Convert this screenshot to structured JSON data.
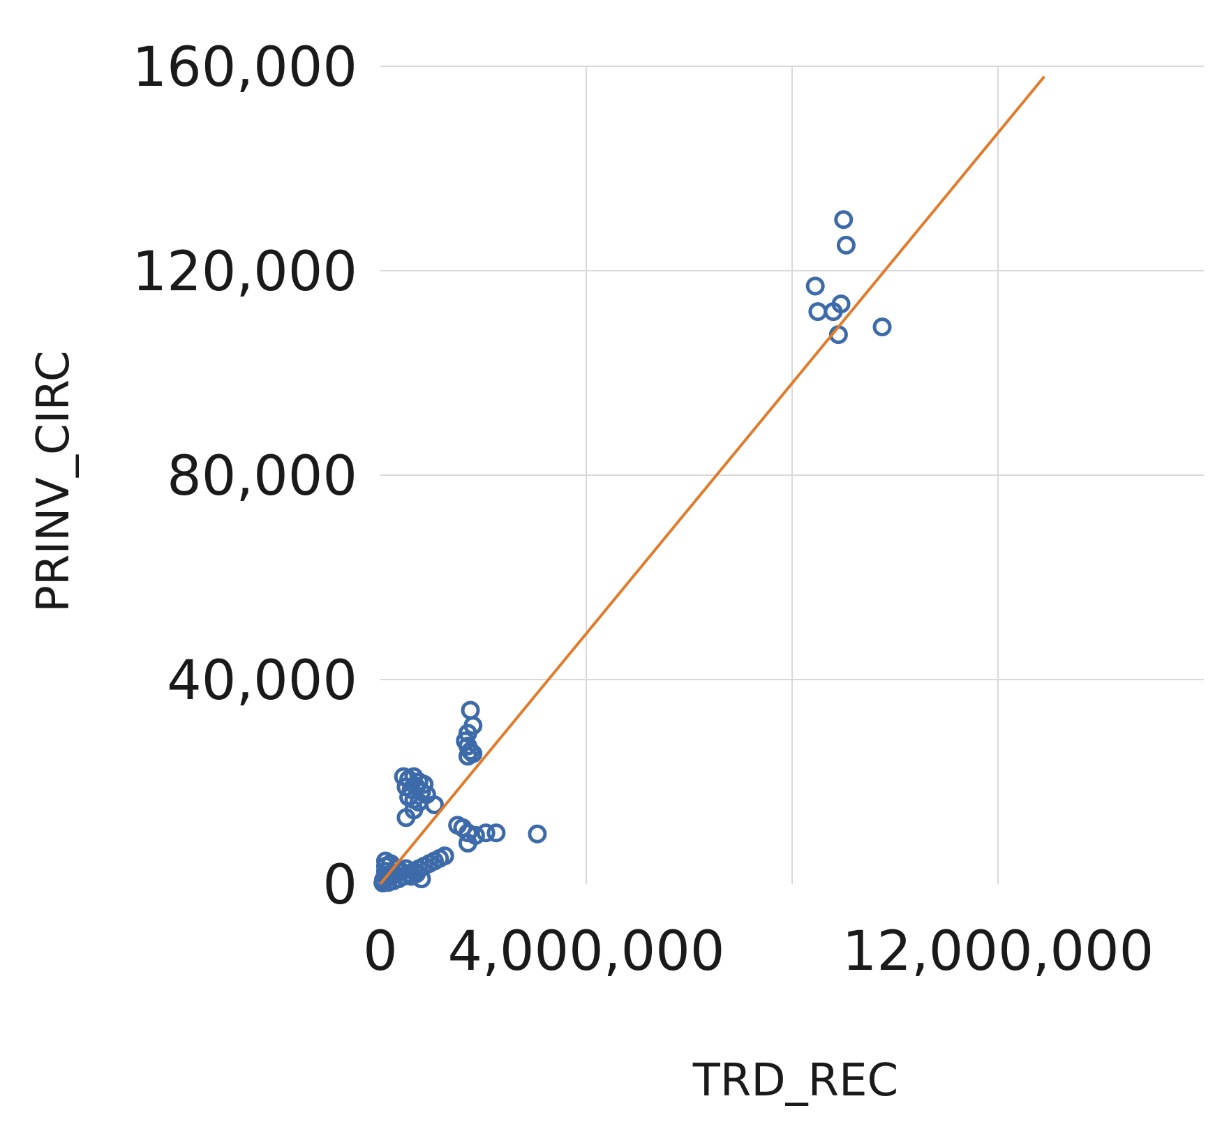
{
  "chart_data": {
    "type": "scatter",
    "xlabel": "TRD_REC",
    "ylabel": "PRINV_CIRC",
    "xlim": [
      0,
      16000000
    ],
    "ylim": [
      0,
      160000
    ],
    "x_ticks": [
      0,
      4000000,
      8000000,
      12000000
    ],
    "x_tick_labels": [
      "0",
      "4,000,000",
      "",
      "12,000,000"
    ],
    "y_ticks": [
      0,
      40000,
      80000,
      120000,
      160000
    ],
    "y_tick_labels": [
      "0",
      "40,000",
      "80,000",
      "120,000",
      "160,000"
    ],
    "grid": true,
    "legend": "none",
    "colors": {
      "points": "#3d6aa8",
      "trendline": "#e07b2a",
      "grid": "#d9d9d9"
    },
    "series": [
      {
        "marker": "open-circle",
        "points": [
          [
            9000000,
            130000
          ],
          [
            9050000,
            125000
          ],
          [
            8450000,
            117000
          ],
          [
            8500000,
            112000
          ],
          [
            8950000,
            113500
          ],
          [
            8800000,
            112000
          ],
          [
            9750000,
            109000
          ],
          [
            8900000,
            107500
          ],
          [
            1750000,
            34000
          ],
          [
            1800000,
            31000
          ],
          [
            1700000,
            29500
          ],
          [
            1650000,
            28000
          ],
          [
            1700000,
            27000
          ],
          [
            1750000,
            26000
          ],
          [
            1700000,
            25000
          ],
          [
            1800000,
            25500
          ],
          [
            450000,
            21000
          ],
          [
            550000,
            20500
          ],
          [
            650000,
            21000
          ],
          [
            750000,
            20000
          ],
          [
            850000,
            19500
          ],
          [
            500000,
            19000
          ],
          [
            600000,
            18500
          ],
          [
            700000,
            19000
          ],
          [
            800000,
            18000
          ],
          [
            900000,
            17500
          ],
          [
            550000,
            17000
          ],
          [
            650000,
            16500
          ],
          [
            750000,
            16000
          ],
          [
            1050000,
            15500
          ],
          [
            500000,
            13000
          ],
          [
            650000,
            14500
          ],
          [
            1500000,
            11500
          ],
          [
            1600000,
            11000
          ],
          [
            1700000,
            10000
          ],
          [
            1850000,
            9500
          ],
          [
            2050000,
            10000
          ],
          [
            2250000,
            10000
          ],
          [
            3050000,
            9800
          ],
          [
            1700000,
            8000
          ],
          [
            1250000,
            5500
          ],
          [
            1150000,
            5000
          ],
          [
            1050000,
            4500
          ],
          [
            950000,
            4000
          ],
          [
            850000,
            3500
          ],
          [
            750000,
            3000
          ],
          [
            650000,
            2500
          ],
          [
            550000,
            2000
          ],
          [
            450000,
            1500
          ],
          [
            350000,
            1000
          ],
          [
            250000,
            600
          ],
          [
            150000,
            300
          ],
          [
            100000,
            4500
          ],
          [
            100000,
            3500
          ],
          [
            100000,
            2500
          ],
          [
            100000,
            1500
          ],
          [
            200000,
            4000
          ],
          [
            200000,
            2000
          ],
          [
            300000,
            3000
          ],
          [
            400000,
            2500
          ],
          [
            500000,
            3000
          ],
          [
            600000,
            1500
          ],
          [
            700000,
            2000
          ],
          [
            800000,
            1000
          ],
          [
            50000,
            200
          ],
          [
            60000,
            800
          ],
          [
            150000,
            1200
          ],
          [
            250000,
            2200
          ]
        ]
      }
    ],
    "trendline": {
      "x": [
        0,
        12900000
      ],
      "y": [
        0,
        158000
      ]
    }
  }
}
